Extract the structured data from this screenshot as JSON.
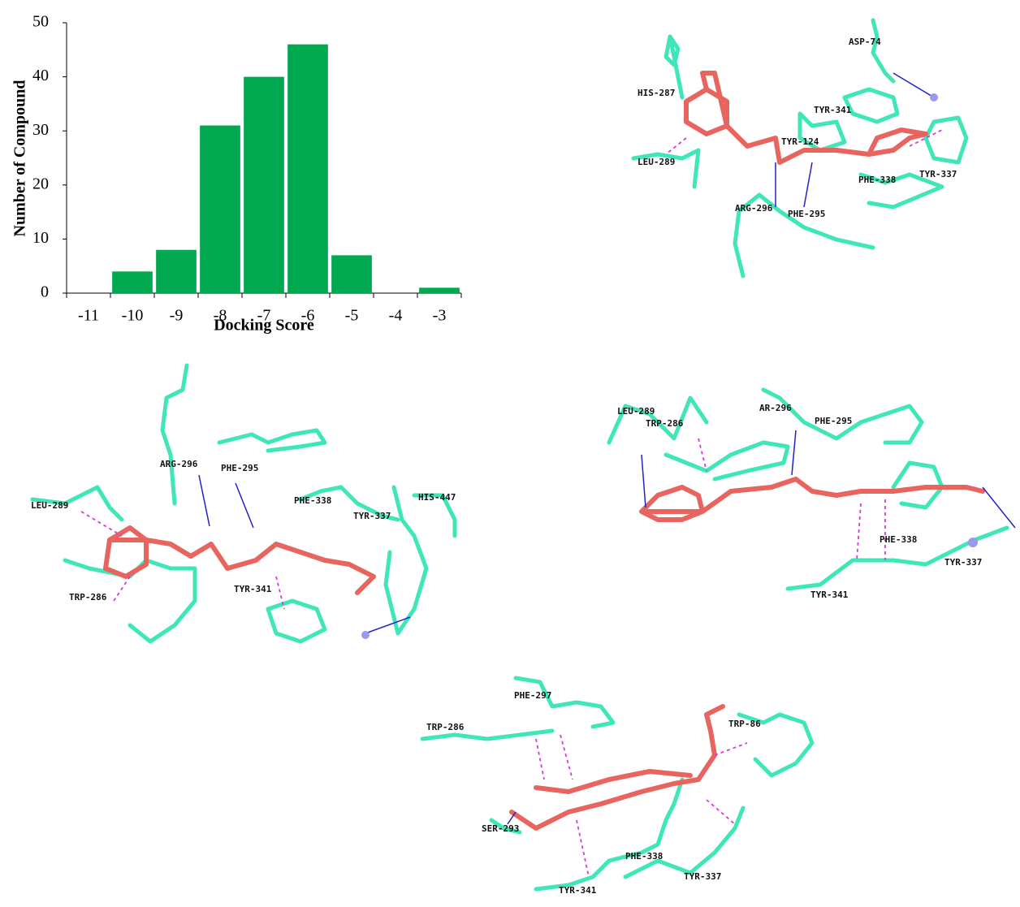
{
  "chart_data": {
    "type": "bar",
    "xlabel": "Docking Score",
    "ylabel": "Number of Compound",
    "categories": [
      "-11",
      "-10",
      "-9",
      "-8",
      "-7",
      "-6",
      "-5",
      "-4",
      "-3"
    ],
    "values": [
      0,
      4,
      8,
      31,
      40,
      46,
      7,
      0,
      1
    ],
    "color": "#00a94f",
    "ylim": [
      0,
      50
    ],
    "yticks": [
      0,
      10,
      20,
      30,
      40,
      50
    ]
  },
  "panels": [
    {
      "labels": [
        "HIS-287",
        "ASP-74",
        "TYR-341",
        "TYR-124",
        "PHE-338",
        "TYR-337",
        "ARG-296",
        "PHE-295",
        "LEU-289"
      ]
    },
    {
      "labels": [
        "LEU-289",
        "ARG-296",
        "PHE-295",
        "PHE-338",
        "TYR-337",
        "HIS-447",
        "TRP-286",
        "TYR-341"
      ]
    },
    {
      "labels": [
        "LEU-289",
        "AR-296",
        "TRP-286",
        "PHE-295",
        "PHE-338",
        "TYR-337",
        "TYR-341"
      ]
    },
    {
      "labels": [
        "PHE-297",
        "TRP-286",
        "TRP-86",
        "SER-293",
        "PHE-338",
        "TYR-337",
        "TYR-341"
      ]
    }
  ]
}
